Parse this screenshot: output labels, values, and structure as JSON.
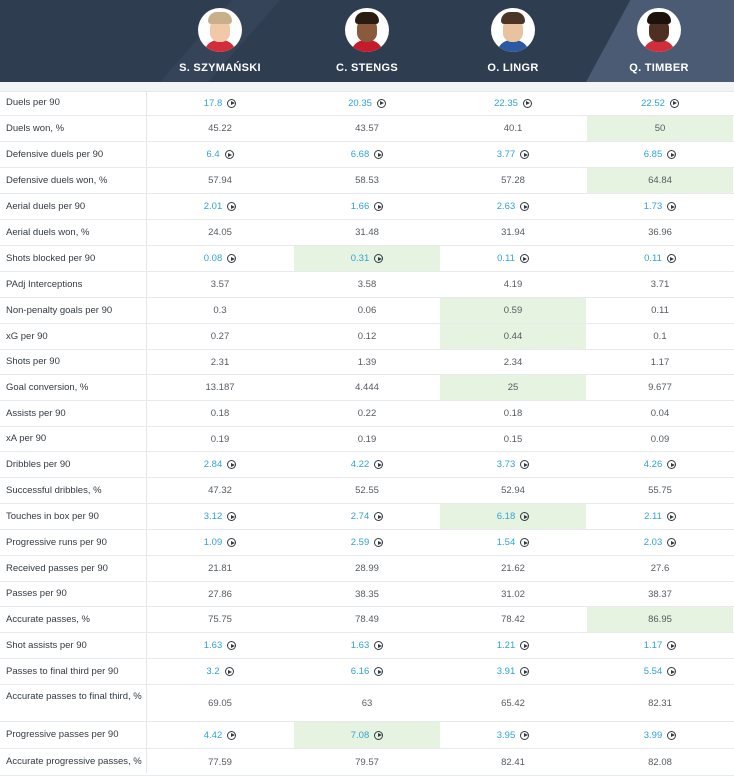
{
  "players": [
    {
      "name": "S. SZYMAŃSKI",
      "hair": "#c8b08a",
      "face": "#f0c9a8",
      "shirt": "#d22d3a"
    },
    {
      "name": "C. STENGS",
      "hair": "#2b1c12",
      "face": "#8a5a3c",
      "shirt": "#c41c2a"
    },
    {
      "name": "O. LINGR",
      "hair": "#4a3526",
      "face": "#e9c2a0",
      "shirt": "#2c5aa0"
    },
    {
      "name": "Q. TIMBER",
      "hair": "#1c120c",
      "face": "#4e3022",
      "shirt": "#d22d3a"
    }
  ],
  "rows": [
    {
      "label": "Duels per 90",
      "values": [
        "17.8",
        "20.35",
        "22.35",
        "22.52"
      ],
      "link": true,
      "highlight": [
        false,
        false,
        false,
        false
      ]
    },
    {
      "label": "Duels won, %",
      "values": [
        "45.22",
        "43.57",
        "40.1",
        "50"
      ],
      "link": false,
      "highlight": [
        false,
        false,
        false,
        true
      ]
    },
    {
      "label": "Defensive duels per 90",
      "values": [
        "6.4",
        "6.68",
        "3.77",
        "6.85"
      ],
      "link": true,
      "highlight": [
        false,
        false,
        false,
        false
      ]
    },
    {
      "label": "Defensive duels won, %",
      "values": [
        "57.94",
        "58.53",
        "57.28",
        "64.84"
      ],
      "link": false,
      "highlight": [
        false,
        false,
        false,
        true
      ]
    },
    {
      "label": "Aerial duels per 90",
      "values": [
        "2.01",
        "1.66",
        "2.63",
        "1.73"
      ],
      "link": true,
      "highlight": [
        false,
        false,
        false,
        false
      ]
    },
    {
      "label": "Aerial duels won, %",
      "values": [
        "24.05",
        "31.48",
        "31.94",
        "36.96"
      ],
      "link": false,
      "highlight": [
        false,
        false,
        false,
        false
      ]
    },
    {
      "label": "Shots blocked per 90",
      "values": [
        "0.08",
        "0.31",
        "0.11",
        "0.11"
      ],
      "link": true,
      "highlight": [
        false,
        true,
        false,
        false
      ]
    },
    {
      "label": "PAdj Interceptions",
      "values": [
        "3.57",
        "3.58",
        "4.19",
        "3.71"
      ],
      "link": false,
      "highlight": [
        false,
        false,
        false,
        false
      ]
    },
    {
      "label": "Non-penalty goals per 90",
      "values": [
        "0.3",
        "0.06",
        "0.59",
        "0.11"
      ],
      "link": false,
      "highlight": [
        false,
        false,
        true,
        false
      ]
    },
    {
      "label": "xG per 90",
      "values": [
        "0.27",
        "0.12",
        "0.44",
        "0.1"
      ],
      "link": false,
      "highlight": [
        false,
        false,
        true,
        false
      ]
    },
    {
      "label": "Shots per 90",
      "values": [
        "2.31",
        "1.39",
        "2.34",
        "1.17"
      ],
      "link": false,
      "highlight": [
        false,
        false,
        false,
        false
      ]
    },
    {
      "label": "Goal conversion, %",
      "values": [
        "13.187",
        "4.444",
        "25",
        "9.677"
      ],
      "link": false,
      "highlight": [
        false,
        false,
        true,
        false
      ]
    },
    {
      "label": "Assists per 90",
      "values": [
        "0.18",
        "0.22",
        "0.18",
        "0.04"
      ],
      "link": false,
      "highlight": [
        false,
        false,
        false,
        false
      ]
    },
    {
      "label": "xA per 90",
      "values": [
        "0.19",
        "0.19",
        "0.15",
        "0.09"
      ],
      "link": false,
      "highlight": [
        false,
        false,
        false,
        false
      ]
    },
    {
      "label": "Dribbles per 90",
      "values": [
        "2.84",
        "4.22",
        "3.73",
        "4.26"
      ],
      "link": true,
      "highlight": [
        false,
        false,
        false,
        false
      ]
    },
    {
      "label": "Successful dribbles, %",
      "values": [
        "47.32",
        "52.55",
        "52.94",
        "55.75"
      ],
      "link": false,
      "highlight": [
        false,
        false,
        false,
        false
      ]
    },
    {
      "label": "Touches in box per 90",
      "values": [
        "3.12",
        "2.74",
        "6.18",
        "2.11"
      ],
      "link": true,
      "highlight": [
        false,
        false,
        true,
        false
      ]
    },
    {
      "label": "Progressive runs per 90",
      "values": [
        "1.09",
        "2.59",
        "1.54",
        "2.03"
      ],
      "link": true,
      "highlight": [
        false,
        false,
        false,
        false
      ]
    },
    {
      "label": "Received passes per 90",
      "values": [
        "21.81",
        "28.99",
        "21.62",
        "27.6"
      ],
      "link": false,
      "highlight": [
        false,
        false,
        false,
        false
      ]
    },
    {
      "label": "Passes per 90",
      "values": [
        "27.86",
        "38.35",
        "31.02",
        "38.37"
      ],
      "link": false,
      "highlight": [
        false,
        false,
        false,
        false
      ]
    },
    {
      "label": "Accurate passes, %",
      "values": [
        "75.75",
        "78.49",
        "78.42",
        "86.95"
      ],
      "link": false,
      "highlight": [
        false,
        false,
        false,
        true
      ]
    },
    {
      "label": "Shot assists per 90",
      "values": [
        "1.63",
        "1.63",
        "1.21",
        "1.17"
      ],
      "link": true,
      "highlight": [
        false,
        false,
        false,
        false
      ]
    },
    {
      "label": "Passes to final third per 90",
      "values": [
        "3.2",
        "6.16",
        "3.91",
        "5.54"
      ],
      "link": true,
      "highlight": [
        false,
        false,
        false,
        false
      ]
    },
    {
      "label": "Accurate passes to final third, %",
      "values": [
        "69.05",
        "63",
        "65.42",
        "82.31"
      ],
      "link": false,
      "highlight": [
        false,
        false,
        false,
        false
      ]
    },
    {
      "label": "Progressive passes per 90",
      "values": [
        "4.42",
        "7.08",
        "3.95",
        "3.99"
      ],
      "link": true,
      "highlight": [
        false,
        true,
        false,
        false
      ]
    },
    {
      "label": "Accurate progressive passes, %",
      "values": [
        "77.59",
        "79.57",
        "82.41",
        "82.08"
      ],
      "link": false,
      "highlight": [
        false,
        false,
        false,
        false
      ]
    }
  ],
  "colors": {
    "header_bg": "#2f3d50",
    "link": "#2fa3d9",
    "highlight": "#e6f3e0"
  }
}
